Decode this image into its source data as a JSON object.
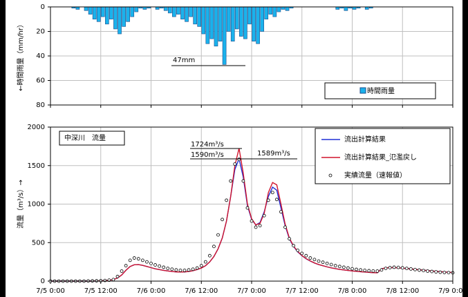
{
  "chart_data": [
    {
      "type": "bar",
      "ylabel": "←時間雨量（mm/hr）",
      "annotation": "47mm",
      "x": [
        0,
        1,
        2,
        3,
        4,
        5,
        6,
        7,
        8,
        9,
        10,
        11,
        12,
        13,
        14,
        15,
        16,
        17,
        18,
        19,
        20,
        21,
        22,
        23,
        24,
        25,
        26,
        27,
        28,
        29,
        30,
        31,
        32,
        33,
        34,
        35,
        36,
        37,
        38,
        39,
        40,
        41,
        42,
        43,
        44,
        45,
        46,
        47,
        48,
        49,
        50,
        51,
        52,
        53,
        54,
        55,
        56,
        57,
        58,
        59,
        60,
        61,
        62,
        63,
        64,
        65,
        66,
        67,
        68,
        69,
        70,
        71,
        72,
        73,
        74,
        75,
        76,
        77,
        78,
        79,
        80,
        81,
        82,
        83,
        84,
        85,
        86,
        87,
        88,
        89,
        90,
        91,
        92,
        93,
        94,
        95
      ],
      "series": [
        {
          "name": "時間雨量",
          "color": "#1ab2ec",
          "values": [
            0,
            0,
            0,
            0,
            0,
            1,
            2,
            0,
            3,
            6,
            10,
            12,
            8,
            14,
            10,
            18,
            22,
            16,
            12,
            8,
            4,
            1,
            2,
            1,
            0,
            2,
            1,
            3,
            5,
            8,
            6,
            10,
            12,
            8,
            14,
            16,
            22,
            30,
            26,
            32,
            28,
            47,
            20,
            28,
            18,
            24,
            26,
            14,
            28,
            30,
            20,
            10,
            6,
            8,
            4,
            2,
            3,
            1,
            0,
            0,
            0,
            0,
            0,
            0,
            0,
            0,
            0,
            0,
            2,
            1,
            3,
            1,
            2,
            1,
            0,
            2,
            1,
            0,
            0,
            0,
            0,
            0,
            0,
            0,
            0,
            0,
            0,
            0,
            0,
            0,
            0,
            0,
            0,
            0,
            0,
            0
          ]
        }
      ],
      "xlim": [
        0,
        96
      ],
      "xticks": [
        0,
        12,
        24,
        36,
        48,
        60,
        72,
        84,
        96
      ],
      "ylim": [
        0,
        80
      ],
      "yticks": [
        0,
        20,
        40,
        60,
        80
      ],
      "y_inverted": true,
      "grid": true
    },
    {
      "type": "line",
      "ylabel": "流量（m³/s）→",
      "panel_label": "中深川　流量",
      "annotations": [
        "1724m³/s",
        "1590m³/s",
        "1589m³/s"
      ],
      "x": [
        0,
        1,
        2,
        3,
        4,
        5,
        6,
        7,
        8,
        9,
        10,
        11,
        12,
        13,
        14,
        15,
        16,
        17,
        18,
        19,
        20,
        21,
        22,
        23,
        24,
        25,
        26,
        27,
        28,
        29,
        30,
        31,
        32,
        33,
        34,
        35,
        36,
        37,
        38,
        39,
        40,
        41,
        42,
        43,
        44,
        45,
        46,
        47,
        48,
        49,
        50,
        51,
        52,
        53,
        54,
        55,
        56,
        57,
        58,
        59,
        60,
        61,
        62,
        63,
        64,
        65,
        66,
        67,
        68,
        69,
        70,
        71,
        72,
        73,
        74,
        75,
        76,
        77,
        78,
        79,
        80,
        81,
        82,
        83,
        84,
        85,
        86,
        87,
        88,
        89,
        90,
        91,
        92,
        93,
        94,
        95,
        96
      ],
      "series": [
        {
          "name": "流出計算結果",
          "color": "#1f2ed6",
          "style": "line",
          "values": [
            0,
            0,
            0,
            0,
            0,
            0,
            0,
            0,
            0,
            0,
            0,
            2,
            4,
            6,
            10,
            20,
            40,
            80,
            140,
            190,
            212,
            215,
            205,
            190,
            175,
            160,
            150,
            140,
            132,
            125,
            120,
            118,
            120,
            125,
            135,
            150,
            170,
            200,
            250,
            320,
            420,
            560,
            780,
            1100,
            1450,
            1590,
            1350,
            980,
            800,
            730,
            760,
            900,
            1100,
            1220,
            1180,
            950,
            720,
            550,
            450,
            380,
            330,
            290,
            260,
            235,
            215,
            200,
            185,
            172,
            162,
            152,
            145,
            138,
            132,
            127,
            122,
            118,
            114,
            110,
            108,
            160,
            172,
            175,
            175,
            172,
            168,
            163,
            158,
            152,
            147,
            142,
            137,
            132,
            127,
            123,
            119,
            115,
            112
          ]
        },
        {
          "name": "流出計算結果_氾濫戻し",
          "color": "#d0142c",
          "style": "line",
          "values": [
            0,
            0,
            0,
            0,
            0,
            0,
            0,
            0,
            0,
            0,
            0,
            2,
            4,
            6,
            10,
            20,
            40,
            80,
            140,
            190,
            212,
            215,
            205,
            190,
            175,
            160,
            150,
            140,
            132,
            125,
            120,
            118,
            120,
            125,
            135,
            150,
            170,
            200,
            250,
            320,
            420,
            560,
            780,
            1100,
            1500,
            1724,
            1400,
            1000,
            810,
            730,
            750,
            880,
            1150,
            1280,
            1250,
            1000,
            740,
            560,
            455,
            385,
            332,
            292,
            262,
            236,
            216,
            200,
            185,
            172,
            162,
            152,
            145,
            138,
            132,
            127,
            122,
            118,
            114,
            110,
            108,
            160,
            172,
            175,
            175,
            172,
            168,
            163,
            158,
            152,
            147,
            142,
            137,
            132,
            127,
            123,
            119,
            115,
            112
          ]
        },
        {
          "name": "実績流量（速報値）",
          "color": "#000000",
          "style": "dots",
          "values": [
            0,
            0,
            0,
            0,
            0,
            0,
            0,
            0,
            0,
            2,
            3,
            4,
            5,
            8,
            12,
            20,
            60,
            130,
            200,
            270,
            300,
            290,
            270,
            250,
            230,
            210,
            195,
            180,
            165,
            155,
            145,
            140,
            140,
            145,
            155,
            170,
            200,
            250,
            330,
            450,
            600,
            800,
            1050,
            1300,
            1520,
            1580,
            1300,
            950,
            780,
            700,
            720,
            850,
            1050,
            1150,
            1060,
            900,
            700,
            550,
            460,
            400,
            360,
            330,
            300,
            280,
            260,
            245,
            230,
            215,
            200,
            190,
            180,
            170,
            160,
            152,
            145,
            140,
            135,
            132,
            130,
            145,
            165,
            175,
            180,
            178,
            172,
            165,
            158,
            150,
            143,
            137,
            130,
            125,
            120,
            115,
            112,
            110,
            108
          ]
        }
      ],
      "xlim": [
        0,
        96
      ],
      "xticks": [
        {
          "value": 0,
          "label": "7/5 0:00"
        },
        {
          "value": 12,
          "label": "7/5 12:00"
        },
        {
          "value": 24,
          "label": "7/6 0:00"
        },
        {
          "value": 36,
          "label": "7/6 12:00"
        },
        {
          "value": 48,
          "label": "7/7 0:00"
        },
        {
          "value": 60,
          "label": "7/7 12:00"
        },
        {
          "value": 72,
          "label": "7/8 0:00"
        },
        {
          "value": 84,
          "label": "7/8 12:00"
        },
        {
          "value": 96,
          "label": "7/9 0:00"
        }
      ],
      "ylim": [
        0,
        2000
      ],
      "yticks": [
        0,
        500,
        1000,
        1500,
        2000
      ],
      "grid": true
    }
  ]
}
